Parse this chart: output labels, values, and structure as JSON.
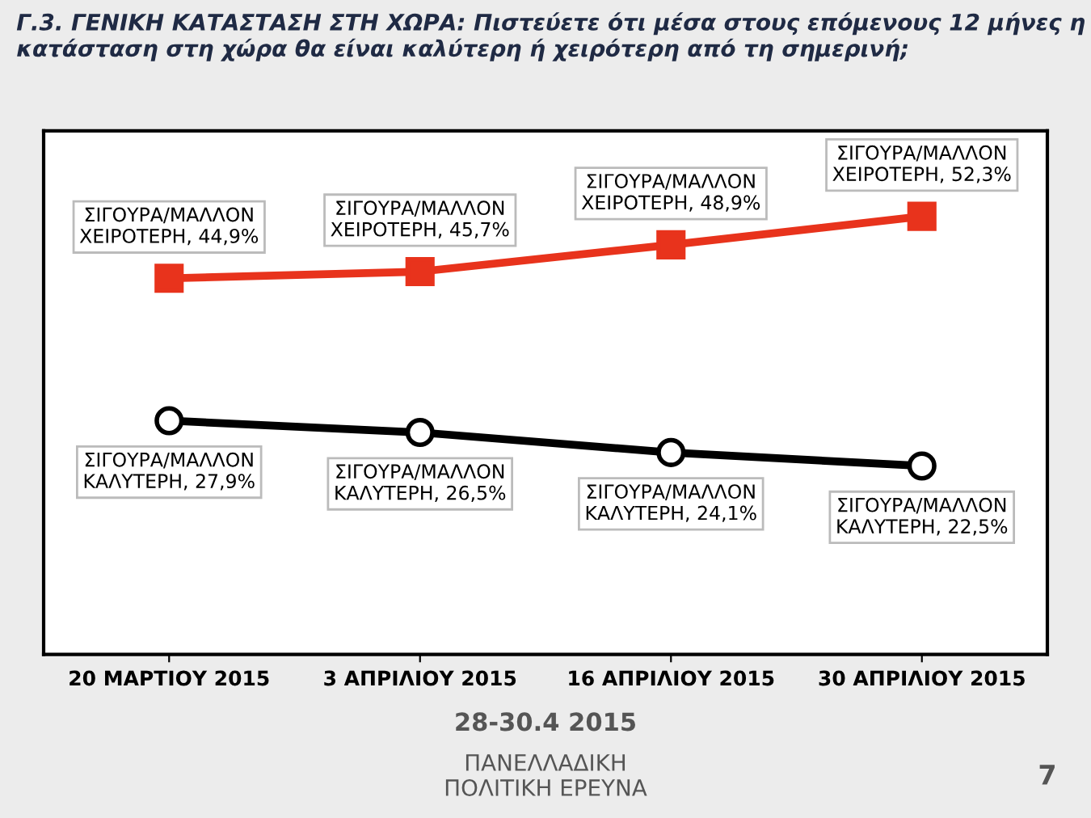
{
  "chart_data": {
    "type": "line",
    "title": "Γ.3. ΓΕΝΙΚΗ ΚΑΤΑΣΤΑΣΗ ΣΤΗ ΧΩΡΑ: Πιστεύετε ότι μέσα στους επόμενους 12 μήνες η κατάσταση στη χώρα θα είναι καλύτερη ή χειρότερη από τη σημερινή;",
    "categories": [
      "20 ΜΑΡΤΙΟΥ 2015",
      "3 ΑΠΡΙΛΙΟΥ 2015",
      "16 ΑΠΡΙΛΙΟΥ 2015",
      "30 ΑΠΡΙΛΙΟΥ 2015"
    ],
    "series": [
      {
        "color": "#e8331c",
        "marker": "square",
        "values": [
          44.9,
          45.7,
          48.9,
          52.3
        ],
        "value_labels": [
          "ΣΙΓΟΥΡΑ/ΜΑΛΛΟΝ\nΧΕΙΡΟΤΕΡΗ, 44,9%",
          "ΣΙΓΟΥΡΑ/ΜΑΛΛΟΝ\nΧΕΙΡΟΤΕΡΗ, 45,7%",
          "ΣΙΓΟΥΡΑ/ΜΑΛΛΟΝ\nΧΕΙΡΟΤΕΡΗ, 48,9%",
          "ΣΙΓΟΥΡΑ/ΜΑΛΛΟΝ\nΧΕΙΡΟΤΕΡΗ, 52,3%"
        ]
      },
      {
        "color": "#000000",
        "marker": "circle",
        "values": [
          27.9,
          26.5,
          24.1,
          22.5
        ],
        "value_labels": [
          "ΣΙΓΟΥΡΑ/ΜΑΛΛΟΝ\nΚΑΛΥΤΕΡΗ, 27,9%",
          "ΣΙΓΟΥΡΑ/ΜΑΛΛΟΝ\nΚΑΛΥΤΕΡΗ, 26,5%",
          "ΣΙΓΟΥΡΑ/ΜΑΛΛΟΝ\nΚΑΛΥΤΕΡΗ, 24,1%",
          "ΣΙΓΟΥΡΑ/ΜΑΛΛΟΝ\nΚΑΛΥΤΕΡΗ, 22,5%"
        ]
      }
    ],
    "ylim": [
      0,
      62.5
    ],
    "tick_labels": "x",
    "grid": false,
    "legend": false,
    "line_style": "solid",
    "annotations": [
      "28-30.4 2015",
      "ΠΑΝΕΛΛΑΔΙΚΗ\nΠΟΛΙΤΙΚΗ ΕΡΕΥΝΑ",
      "7"
    ]
  }
}
